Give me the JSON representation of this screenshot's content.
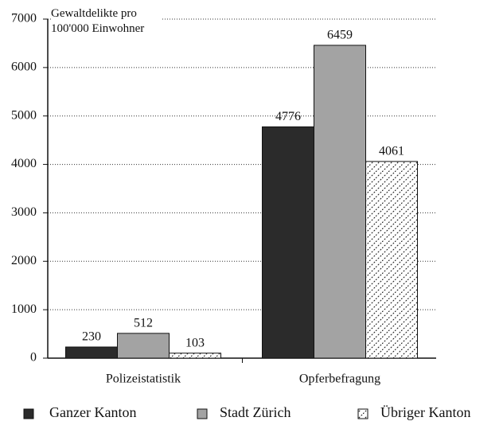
{
  "chart_data": {
    "type": "bar",
    "y_label": "Gewaltdelikte pro 100'000 Einwohner",
    "categories": [
      "Polizeistatistik",
      "Opferbefragung"
    ],
    "series": [
      {
        "name": "Ganzer Kanton",
        "color": "#2b2b2b",
        "values": [
          230,
          4776
        ]
      },
      {
        "name": "Stadt Zürich",
        "color": "#a3a3a3",
        "values": [
          512,
          6459
        ]
      },
      {
        "name": "Übriger Kanton",
        "color": "#ffffff",
        "values": [
          103,
          4061
        ]
      }
    ],
    "ylim": [
      0,
      7000
    ],
    "yticks": [
      0,
      1000,
      2000,
      3000,
      4000,
      5000,
      6000,
      7000
    ],
    "grid": true,
    "legend": "bottom"
  }
}
